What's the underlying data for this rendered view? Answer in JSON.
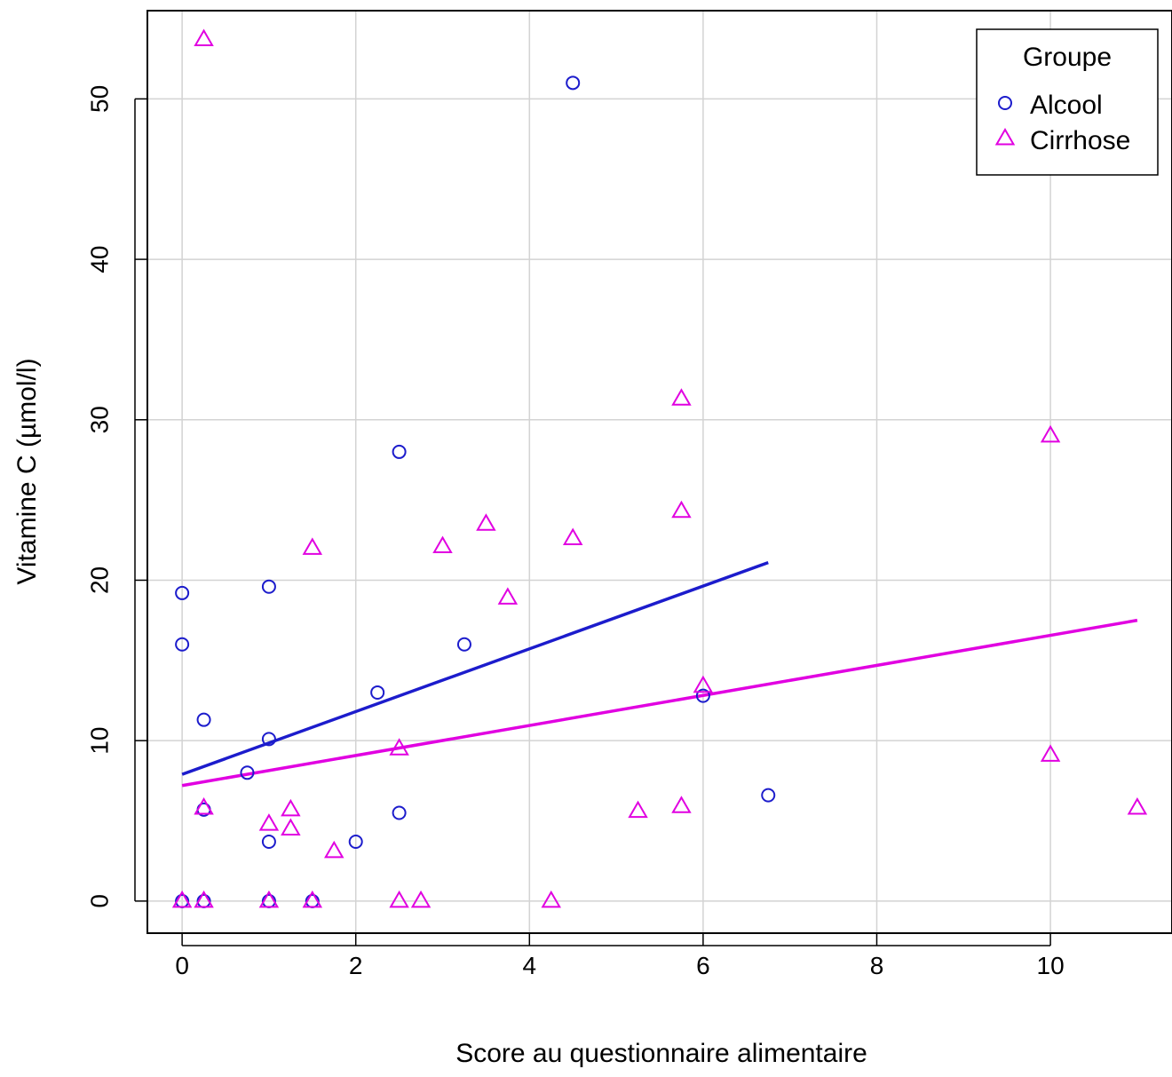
{
  "chart_data": {
    "type": "scatter",
    "title": "",
    "xlabel": "Score au questionnaire alimentaire",
    "ylabel": "Vitamine C (µmol/l)",
    "xlim": [
      -0.4,
      11.4
    ],
    "ylim": [
      -2,
      55.5
    ],
    "x_ticks": [
      "0",
      "2",
      "4",
      "6",
      "8",
      "10"
    ],
    "y_ticks": [
      "0",
      "10",
      "20",
      "30",
      "40",
      "50"
    ],
    "grid": true,
    "legend": {
      "title": "Groupe",
      "position": "top-right",
      "entries": [
        {
          "label": "Alcool",
          "marker": "circle",
          "color": "#1c1ccc"
        },
        {
          "label": "Cirrhose",
          "marker": "triangle",
          "color": "#e100e1"
        }
      ]
    },
    "series": [
      {
        "name": "Alcool",
        "marker": "circle",
        "color": "#1c1ccc",
        "points": [
          [
            0,
            19.2
          ],
          [
            0,
            16
          ],
          [
            0,
            0
          ],
          [
            0.25,
            11.3
          ],
          [
            0.25,
            5.7
          ],
          [
            0.25,
            0
          ],
          [
            0.75,
            8
          ],
          [
            1,
            19.6
          ],
          [
            1,
            10.1
          ],
          [
            1,
            3.7
          ],
          [
            1,
            0
          ],
          [
            1.5,
            0
          ],
          [
            2,
            3.7
          ],
          [
            2.25,
            13
          ],
          [
            2.5,
            28
          ],
          [
            2.5,
            5.5
          ],
          [
            3.25,
            16
          ],
          [
            4.5,
            51
          ],
          [
            6,
            12.8
          ],
          [
            6.75,
            6.6
          ]
        ],
        "fit": {
          "x": [
            0,
            6.75
          ],
          "y": [
            7.9,
            21.1
          ]
        }
      },
      {
        "name": "Cirrhose",
        "marker": "triangle",
        "color": "#e100e1",
        "points": [
          [
            0.25,
            53.7
          ],
          [
            0,
            0
          ],
          [
            0.25,
            5.8
          ],
          [
            0.25,
            0
          ],
          [
            1,
            4.8
          ],
          [
            1,
            0
          ],
          [
            1.25,
            5.7
          ],
          [
            1.25,
            4.5
          ],
          [
            1.5,
            22
          ],
          [
            1.5,
            0
          ],
          [
            1.75,
            3.1
          ],
          [
            2.5,
            9.5
          ],
          [
            2.5,
            0
          ],
          [
            2.75,
            0
          ],
          [
            3,
            22.1
          ],
          [
            3.5,
            23.5
          ],
          [
            3.75,
            18.9
          ],
          [
            4.25,
            0
          ],
          [
            4.5,
            22.6
          ],
          [
            5.25,
            5.6
          ],
          [
            5.75,
            31.3
          ],
          [
            5.75,
            24.3
          ],
          [
            5.75,
            5.9
          ],
          [
            6,
            13.4
          ],
          [
            10,
            29
          ],
          [
            10,
            9.1
          ],
          [
            11,
            5.8
          ]
        ],
        "fit": {
          "x": [
            0,
            11
          ],
          "y": [
            7.2,
            17.5
          ]
        }
      }
    ]
  }
}
